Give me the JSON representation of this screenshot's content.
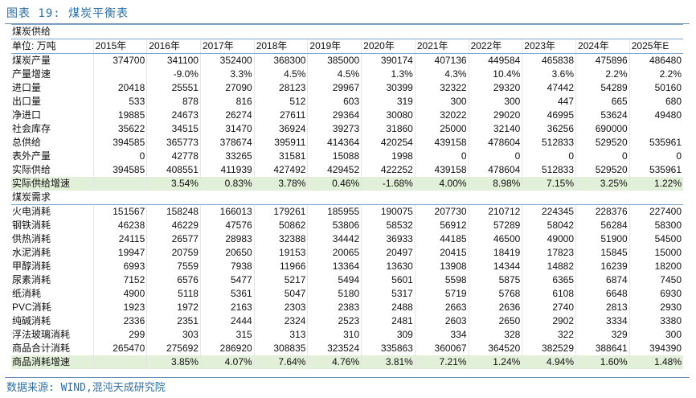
{
  "figure_title": "图表 19: 煤炭平衡表",
  "source_note": "数据来源: WIND,混沌天成研究院",
  "header": {
    "unit_label": "单位: 万吨",
    "years": [
      "2015年",
      "2016年",
      "2017年",
      "2018年",
      "2019年",
      "2020年",
      "2021年",
      "2022年",
      "2023年",
      "2024年",
      "2025年E"
    ]
  },
  "supply": {
    "title": "煤炭供给",
    "rows": [
      {
        "label": "煤炭产量",
        "values": [
          "374700",
          "341100",
          "352400",
          "368300",
          "385000",
          "390174",
          "407136",
          "449584",
          "465838",
          "475896",
          "486480"
        ]
      },
      {
        "label": "产量增速",
        "values": [
          "",
          "-9.0%",
          "3.3%",
          "4.5%",
          "4.5%",
          "1.3%",
          "4.3%",
          "10.4%",
          "3.6%",
          "2.2%",
          "2.2%"
        ]
      },
      {
        "label": "进口量",
        "values": [
          "20418",
          "25551",
          "27090",
          "28123",
          "29967",
          "30399",
          "32322",
          "29320",
          "47442",
          "54289",
          "50160"
        ]
      },
      {
        "label": "出口量",
        "values": [
          "533",
          "878",
          "816",
          "512",
          "603",
          "319",
          "300",
          "300",
          "447",
          "665",
          "680"
        ]
      },
      {
        "label": "净进口",
        "values": [
          "19885",
          "24673",
          "26274",
          "27611",
          "29364",
          "30080",
          "32022",
          "29020",
          "46995",
          "53624",
          "49480"
        ]
      },
      {
        "label": "社会库存",
        "values": [
          "35622",
          "34515",
          "31470",
          "36924",
          "39273",
          "31860",
          "25000",
          "32140",
          "36256",
          "690000",
          ""
        ]
      },
      {
        "label": "总供给",
        "values": [
          "394585",
          "365773",
          "378674",
          "395911",
          "414364",
          "420254",
          "439158",
          "478604",
          "512833",
          "529520",
          "535961"
        ]
      },
      {
        "label": "表外产量",
        "values": [
          "0",
          "42778",
          "33265",
          "31581",
          "15088",
          "1998",
          "0",
          "0",
          "0",
          "0",
          "0"
        ]
      },
      {
        "label": "实际供给",
        "values": [
          "394585",
          "408551",
          "411939",
          "427492",
          "429452",
          "422252",
          "439158",
          "478604",
          "512833",
          "529520",
          "535961"
        ]
      },
      {
        "label": "实际供给增速",
        "values": [
          "",
          "3.54%",
          "0.83%",
          "3.78%",
          "0.46%",
          "-1.68%",
          "4.00%",
          "8.98%",
          "7.15%",
          "3.25%",
          "1.22%"
        ],
        "highlight": true
      }
    ]
  },
  "demand": {
    "title": "煤炭需求",
    "rows": [
      {
        "label": "火电消耗",
        "values": [
          "151567",
          "158248",
          "166013",
          "179261",
          "185955",
          "190075",
          "207730",
          "210712",
          "224345",
          "228376",
          "227400"
        ]
      },
      {
        "label": "钢铁消耗",
        "values": [
          "46238",
          "46229",
          "47576",
          "50862",
          "53806",
          "58532",
          "56912",
          "57289",
          "58042",
          "56284",
          "58300"
        ]
      },
      {
        "label": "供热消耗",
        "values": [
          "24115",
          "26577",
          "28983",
          "32388",
          "34442",
          "36933",
          "44185",
          "46500",
          "49000",
          "51900",
          "54500"
        ]
      },
      {
        "label": "水泥消耗",
        "values": [
          "19947",
          "20759",
          "20650",
          "19153",
          "20065",
          "20497",
          "20415",
          "18419",
          "17823",
          "15845",
          "15000"
        ]
      },
      {
        "label": "甲醇消耗",
        "values": [
          "6993",
          "7559",
          "7938",
          "11966",
          "13364",
          "13630",
          "13908",
          "14344",
          "14882",
          "16239",
          "18200"
        ]
      },
      {
        "label": "尿素消耗",
        "values": [
          "7152",
          "6576",
          "5477",
          "5217",
          "5494",
          "5601",
          "5598",
          "5875",
          "6365",
          "6874",
          "7450"
        ]
      },
      {
        "label": "纸消耗",
        "values": [
          "4900",
          "5118",
          "5361",
          "5047",
          "5180",
          "5317",
          "5719",
          "5768",
          "6108",
          "6648",
          "6930"
        ]
      },
      {
        "label": "PVC消耗",
        "values": [
          "1923",
          "1972",
          "2163",
          "2303",
          "2383",
          "2488",
          "2663",
          "2636",
          "2740",
          "2813",
          "2930"
        ]
      },
      {
        "label": "纯碱消耗",
        "values": [
          "2336",
          "2351",
          "2444",
          "2324",
          "2523",
          "2481",
          "2603",
          "2650",
          "2902",
          "3334",
          "3380"
        ]
      },
      {
        "label": "浮法玻璃消耗",
        "values": [
          "299",
          "303",
          "315",
          "313",
          "310",
          "309",
          "334",
          "328",
          "322",
          "329",
          "300"
        ]
      },
      {
        "label": "商品合计消耗",
        "values": [
          "265470",
          "275692",
          "286920",
          "308835",
          "323524",
          "335863",
          "360067",
          "364520",
          "382529",
          "388641",
          "394390"
        ]
      },
      {
        "label": "商品消耗增速",
        "values": [
          "",
          "3.85%",
          "4.07%",
          "7.64%",
          "4.76%",
          "3.81%",
          "7.21%",
          "1.24%",
          "4.94%",
          "1.60%",
          "1.48%"
        ],
        "highlight": true
      }
    ]
  },
  "colors": {
    "title_blue": "#2d6fa6",
    "rule_blue": "#7ea6cf",
    "highlight_green": "#e3f0d9"
  }
}
